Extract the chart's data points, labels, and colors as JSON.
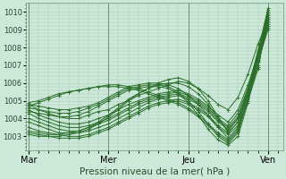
{
  "xlabel": "Pression niveau de la mer( hPa )",
  "ylim": [
    1002.2,
    1010.5
  ],
  "yticks": [
    1003,
    1004,
    1005,
    1006,
    1007,
    1008,
    1009,
    1010
  ],
  "bg_color": "#cce8d8",
  "grid_color": "#aacaba",
  "line_color": "#2a6e2a",
  "xtick_labels": [
    "Mar",
    "Mer",
    "Jeu",
    "Ven"
  ],
  "xtick_positions": [
    0.0,
    8.0,
    16.0,
    24.0
  ],
  "xlim": [
    -0.3,
    25.5
  ],
  "vline_positions": [
    0.0,
    8.0,
    16.0,
    24.0
  ],
  "series": [
    [
      1004.8,
      1004.5,
      1004.3,
      1004.1,
      1004.0,
      1004.0,
      1004.2,
      1004.4,
      1004.5,
      1004.8,
      1005.0,
      1005.3,
      1005.5,
      1005.7,
      1005.9,
      1006.1,
      1006.0,
      1005.7,
      1005.3,
      1004.8,
      1004.5,
      1005.2,
      1006.5,
      1008.2,
      1009.5
    ],
    [
      1004.5,
      1004.2,
      1004.0,
      1003.8,
      1003.7,
      1003.7,
      1003.8,
      1004.0,
      1004.2,
      1004.5,
      1004.8,
      1005.0,
      1005.2,
      1005.4,
      1005.5,
      1005.6,
      1005.4,
      1005.1,
      1004.7,
      1004.2,
      1003.8,
      1004.5,
      1005.9,
      1007.6,
      1009.2
    ],
    [
      1004.3,
      1004.0,
      1003.8,
      1003.6,
      1003.5,
      1003.5,
      1003.6,
      1003.8,
      1004.0,
      1004.3,
      1004.6,
      1004.9,
      1005.1,
      1005.3,
      1005.4,
      1005.5,
      1005.3,
      1005.0,
      1004.6,
      1004.0,
      1003.6,
      1004.3,
      1005.7,
      1007.4,
      1009.1
    ],
    [
      1004.0,
      1003.8,
      1003.6,
      1003.4,
      1003.3,
      1003.3,
      1003.5,
      1003.7,
      1003.9,
      1004.2,
      1004.5,
      1004.8,
      1005.0,
      1005.2,
      1005.3,
      1005.4,
      1005.2,
      1004.9,
      1004.5,
      1003.9,
      1003.5,
      1004.1,
      1005.5,
      1007.2,
      1009.0
    ],
    [
      1003.8,
      1003.6,
      1003.4,
      1003.2,
      1003.2,
      1003.2,
      1003.3,
      1003.5,
      1003.7,
      1004.0,
      1004.3,
      1004.6,
      1004.9,
      1005.1,
      1005.2,
      1005.3,
      1005.1,
      1004.8,
      1004.4,
      1003.8,
      1003.4,
      1004.0,
      1005.3,
      1007.0,
      1009.3
    ],
    [
      1003.5,
      1003.3,
      1003.2,
      1003.1,
      1003.0,
      1003.0,
      1003.1,
      1003.3,
      1003.5,
      1003.8,
      1004.1,
      1004.4,
      1004.7,
      1004.9,
      1005.0,
      1005.1,
      1004.9,
      1004.6,
      1004.2,
      1003.6,
      1003.2,
      1003.8,
      1005.2,
      1006.9,
      1009.6
    ],
    [
      1003.2,
      1003.1,
      1003.0,
      1002.9,
      1002.9,
      1002.9,
      1003.0,
      1003.2,
      1003.4,
      1003.7,
      1004.0,
      1004.3,
      1004.6,
      1004.8,
      1004.9,
      1005.0,
      1004.8,
      1004.5,
      1004.1,
      1003.5,
      1003.1,
      1003.6,
      1005.0,
      1006.8,
      1009.8
    ],
    [
      1004.8,
      1004.7,
      1004.6,
      1004.5,
      1004.5,
      1004.6,
      1004.7,
      1004.9,
      1005.2,
      1005.5,
      1005.8,
      1005.9,
      1006.0,
      1006.0,
      1005.9,
      1005.7,
      1005.3,
      1004.8,
      1004.2,
      1003.5,
      1002.9,
      1003.5,
      1005.5,
      1007.8,
      1010.2
    ],
    [
      1004.6,
      1004.5,
      1004.4,
      1004.3,
      1004.3,
      1004.4,
      1004.6,
      1004.8,
      1005.1,
      1005.4,
      1005.7,
      1005.8,
      1005.9,
      1005.9,
      1005.8,
      1005.5,
      1005.0,
      1004.4,
      1003.7,
      1003.0,
      1002.6,
      1003.2,
      1005.2,
      1007.6,
      1010.0
    ],
    [
      1004.4,
      1004.3,
      1004.2,
      1004.1,
      1004.1,
      1004.2,
      1004.4,
      1004.7,
      1005.0,
      1005.3,
      1005.6,
      1005.7,
      1005.8,
      1005.8,
      1005.7,
      1005.4,
      1004.9,
      1004.2,
      1003.4,
      1002.8,
      1002.5,
      1003.0,
      1004.9,
      1007.3,
      1009.7
    ],
    [
      1004.9,
      1005.0,
      1005.2,
      1005.4,
      1005.5,
      1005.6,
      1005.7,
      1005.8,
      1005.8,
      1005.8,
      1005.7,
      1005.6,
      1005.4,
      1005.2,
      1005.0,
      1004.8,
      1004.5,
      1004.1,
      1003.6,
      1003.1,
      1002.7,
      1003.3,
      1005.0,
      1007.4,
      1009.9
    ],
    [
      1004.7,
      1004.9,
      1005.1,
      1005.3,
      1005.5,
      1005.6,
      1005.7,
      1005.8,
      1005.9,
      1005.9,
      1005.8,
      1005.7,
      1005.5,
      1005.3,
      1005.1,
      1004.9,
      1004.6,
      1004.2,
      1003.7,
      1003.2,
      1002.8,
      1003.4,
      1005.1,
      1007.5,
      1010.1
    ],
    [
      1003.1,
      1003.0,
      1003.0,
      1003.0,
      1003.1,
      1003.2,
      1003.4,
      1003.7,
      1004.1,
      1004.5,
      1005.0,
      1005.4,
      1005.7,
      1006.0,
      1006.2,
      1006.3,
      1006.1,
      1005.7,
      1005.0,
      1004.1,
      1003.2,
      1003.8,
      1005.5,
      1007.6,
      1009.4
    ],
    [
      1003.3,
      1003.2,
      1003.1,
      1003.1,
      1003.2,
      1003.3,
      1003.5,
      1003.8,
      1004.2,
      1004.6,
      1005.1,
      1005.4,
      1005.7,
      1005.9,
      1006.0,
      1006.0,
      1005.8,
      1005.4,
      1004.8,
      1004.0,
      1003.3,
      1004.0,
      1005.7,
      1007.8,
      1009.6
    ]
  ]
}
